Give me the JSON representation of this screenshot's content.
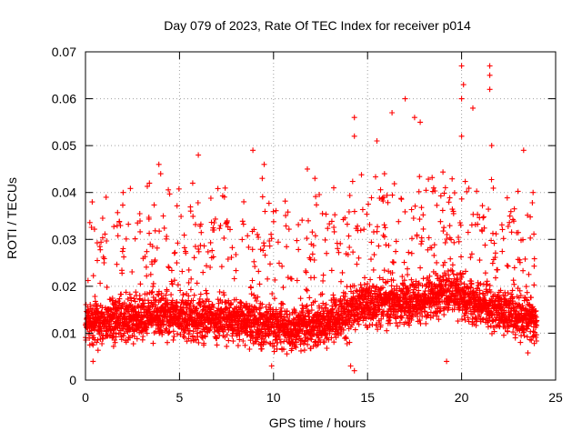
{
  "chart_data": {
    "type": "scatter",
    "title": "Day 079 of 2023, Rate Of TEC Index for receiver p014",
    "xlabel": "GPS time / hours",
    "ylabel": "ROTI / TECUs",
    "xlim": [
      0,
      25
    ],
    "ylim": [
      0,
      0.07
    ],
    "x_ticks": [
      0,
      5,
      10,
      15,
      20,
      25
    ],
    "x_tick_labels": [
      "0",
      "5",
      "10",
      "15",
      "20",
      "25"
    ],
    "y_ticks": [
      0,
      0.01,
      0.02,
      0.03,
      0.04,
      0.05,
      0.06,
      0.07
    ],
    "y_tick_labels": [
      "0",
      "0.01",
      "0.02",
      "0.03",
      "0.04",
      "0.05",
      "0.06",
      "0.07"
    ],
    "grid": true,
    "marker": "+",
    "series": [
      {
        "name": "ROTI",
        "color": "#ff0000",
        "x_range": [
          0,
          24
        ],
        "baseline_profile": {
          "x": [
            0,
            2,
            4,
            6,
            8,
            10,
            11.5,
            13,
            14.5,
            16,
            18,
            19.5,
            21,
            22.5,
            24
          ],
          "y": [
            0.012,
            0.013,
            0.014,
            0.013,
            0.013,
            0.011,
            0.011,
            0.012,
            0.016,
            0.016,
            0.017,
            0.019,
            0.016,
            0.014,
            0.013
          ]
        },
        "notable_points": [
          {
            "x": 20.0,
            "y": 0.067
          },
          {
            "x": 21.5,
            "y": 0.067
          },
          {
            "x": 21.5,
            "y": 0.065
          },
          {
            "x": 20.1,
            "y": 0.063
          },
          {
            "x": 21.5,
            "y": 0.062
          },
          {
            "x": 17.0,
            "y": 0.06
          },
          {
            "x": 20.0,
            "y": 0.06
          },
          {
            "x": 20.6,
            "y": 0.058
          },
          {
            "x": 14.3,
            "y": 0.056
          },
          {
            "x": 17.5,
            "y": 0.056
          },
          {
            "x": 16.3,
            "y": 0.057
          },
          {
            "x": 17.8,
            "y": 0.055
          },
          {
            "x": 14.3,
            "y": 0.052
          },
          {
            "x": 15.5,
            "y": 0.051
          },
          {
            "x": 20.0,
            "y": 0.052
          },
          {
            "x": 21.6,
            "y": 0.05
          },
          {
            "x": 8.9,
            "y": 0.049
          },
          {
            "x": 23.3,
            "y": 0.049
          },
          {
            "x": 6.0,
            "y": 0.048
          },
          {
            "x": 3.9,
            "y": 0.046
          },
          {
            "x": 9.5,
            "y": 0.046
          },
          {
            "x": 11.8,
            "y": 0.045
          },
          {
            "x": 4.0,
            "y": 0.044
          },
          {
            "x": 12.2,
            "y": 0.043
          },
          {
            "x": 3.4,
            "y": 0.042
          },
          {
            "x": 5.7,
            "y": 0.042
          },
          {
            "x": 9.4,
            "y": 0.043
          },
          {
            "x": 15.9,
            "y": 0.044
          },
          {
            "x": 2.0,
            "y": 0.04
          },
          {
            "x": 1.1,
            "y": 0.039
          },
          {
            "x": 13.2,
            "y": 0.041
          },
          {
            "x": 23.8,
            "y": 0.04
          },
          {
            "x": 0.4,
            "y": 0.004
          },
          {
            "x": 14.1,
            "y": 0.003
          },
          {
            "x": 14.3,
            "y": 0.002
          },
          {
            "x": 19.2,
            "y": 0.004
          },
          {
            "x": 9.9,
            "y": 0.003
          }
        ]
      }
    ]
  }
}
